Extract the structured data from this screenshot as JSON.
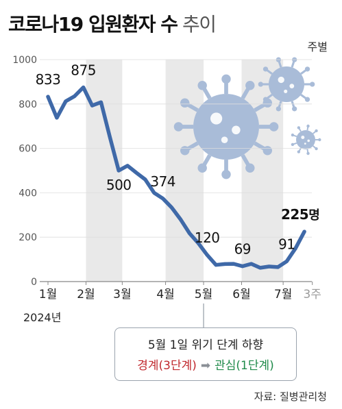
{
  "title": {
    "main": "코로나19 입원환자 수",
    "sub": "추이"
  },
  "unit": "주별",
  "source": "자료: 질병관리청",
  "year_label": "2024년",
  "callout": {
    "heading": "5월 1일 위기 단계 하향",
    "from": "경계(3단계)",
    "arrow": "➡",
    "to": "관심(1단계)"
  },
  "chart_data": {
    "type": "line",
    "title": "코로나19 입원환자 수 추이",
    "unit": "주별",
    "ylim": [
      0,
      1000
    ],
    "y_ticks": [
      0,
      200,
      400,
      600,
      800,
      1000
    ],
    "month_labels": [
      {
        "label": "1월",
        "week": 0
      },
      {
        "label": "2월",
        "week": 4.3
      },
      {
        "label": "3월",
        "week": 8.4
      },
      {
        "label": "4월",
        "week": 13.3
      },
      {
        "label": "5월",
        "week": 17.6
      },
      {
        "label": "6월",
        "week": 21.9
      },
      {
        "label": "7월",
        "week": 26.6
      },
      {
        "label": "3주",
        "week": 29.9,
        "muted": true
      }
    ],
    "series": [
      {
        "values": [
          833,
          738,
          812,
          835,
          875,
          793,
          808,
          651,
          500,
          522,
          490,
          460,
          400,
          374,
          333,
          280,
          218,
          173,
          120,
          75,
          79,
          80,
          69,
          80,
          62,
          68,
          65,
          91,
          150,
          225
        ]
      }
    ],
    "data_labels": [
      {
        "index": 0,
        "text": "833"
      },
      {
        "index": 4,
        "text": "875"
      },
      {
        "index": 8,
        "text": "500"
      },
      {
        "index": 13,
        "text": "374"
      },
      {
        "index": 18,
        "text": "120"
      },
      {
        "index": 22,
        "text": "69"
      },
      {
        "index": 27,
        "text": "91"
      },
      {
        "index": 29,
        "text": "225",
        "suffix": "명"
      }
    ]
  },
  "colors": {
    "line": "#3f69a8",
    "line_stroke": "#4c78b8",
    "band": "#e9e9e9",
    "virus": "#a9bcd8",
    "label": "#111111",
    "axis_text": "#555555"
  },
  "icons": [
    "virus-icon-large",
    "virus-icon-medium",
    "virus-icon-small"
  ]
}
